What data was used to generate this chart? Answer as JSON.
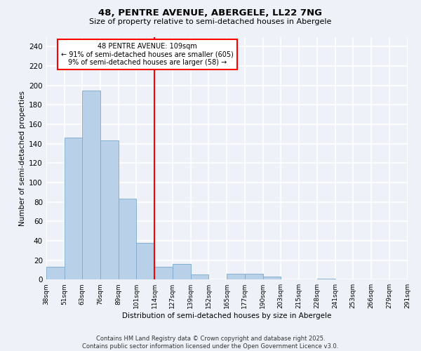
{
  "title_line1": "48, PENTRE AVENUE, ABERGELE, LL22 7NG",
  "title_line2": "Size of property relative to semi-detached houses in Abergele",
  "xlabel": "Distribution of semi-detached houses by size in Abergele",
  "ylabel": "Number of semi-detached properties",
  "bar_color": "#b8d0e8",
  "bar_edge_color": "#7aaacf",
  "vline_color": "red",
  "bin_labels": [
    "38sqm",
    "51sqm",
    "63sqm",
    "76sqm",
    "89sqm",
    "101sqm",
    "114sqm",
    "127sqm",
    "139sqm",
    "152sqm",
    "165sqm",
    "177sqm",
    "190sqm",
    "203sqm",
    "215sqm",
    "228sqm",
    "241sqm",
    "253sqm",
    "266sqm",
    "279sqm",
    "291sqm"
  ],
  "counts": [
    13,
    146,
    195,
    143,
    83,
    38,
    13,
    16,
    5,
    0,
    6,
    6,
    3,
    0,
    0,
    1,
    0,
    0,
    0,
    0
  ],
  "ylim": [
    0,
    250
  ],
  "yticks": [
    0,
    20,
    40,
    60,
    80,
    100,
    120,
    140,
    160,
    180,
    200,
    220,
    240
  ],
  "annotation_text": "48 PENTRE AVENUE: 109sqm\n← 91% of semi-detached houses are smaller (605)\n9% of semi-detached houses are larger (58) →",
  "annotation_box_color": "white",
  "annotation_box_edge": "red",
  "footer": "Contains HM Land Registry data © Crown copyright and database right 2025.\nContains public sector information licensed under the Open Government Licence v3.0.",
  "bg_color": "#eef2f8",
  "grid_color": "white"
}
